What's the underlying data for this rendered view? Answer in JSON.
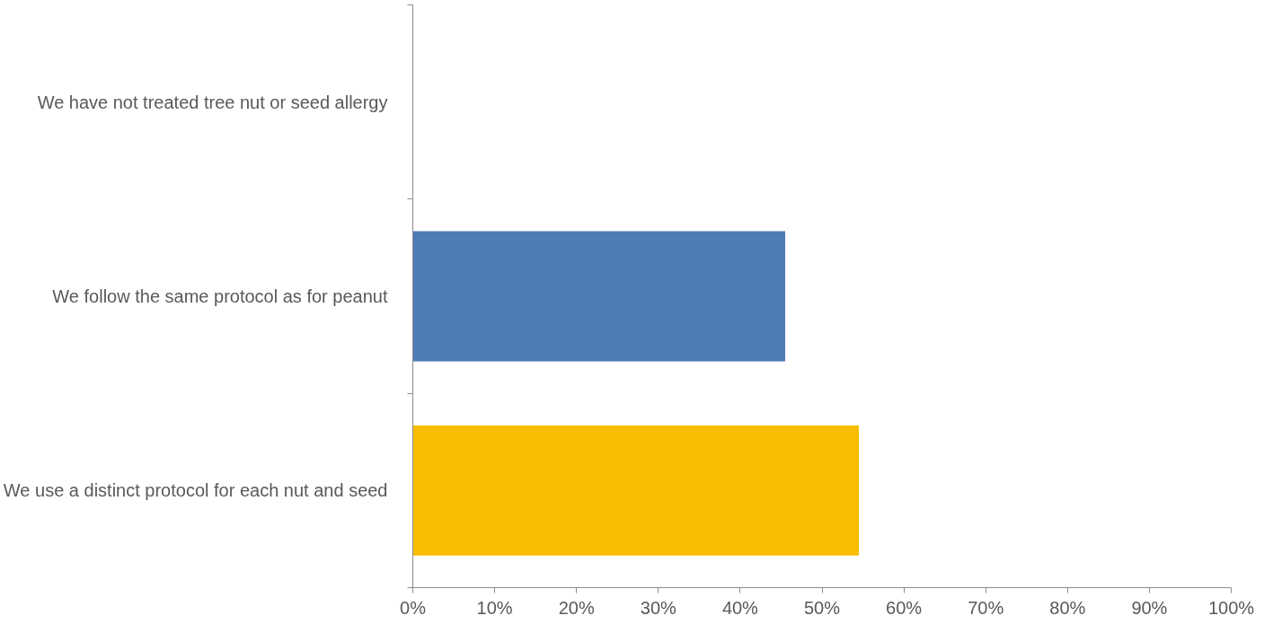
{
  "chart_data": {
    "type": "bar",
    "orientation": "horizontal",
    "categories": [
      "We have not treated tree nut or seed allergy",
      "We follow the same protocol as for peanut",
      "We use a distinct protocol for each nut and seed"
    ],
    "values": [
      0,
      45.5,
      54.5
    ],
    "colors": [
      "#a5a5a5",
      "#4e7ab5",
      "#f8bd00"
    ],
    "xlim": [
      0,
      100
    ],
    "xticks": [
      {
        "value": 0,
        "label": "0%"
      },
      {
        "value": 10,
        "label": "10%"
      },
      {
        "value": 20,
        "label": "20%"
      },
      {
        "value": 30,
        "label": "30%"
      },
      {
        "value": 40,
        "label": "40%"
      },
      {
        "value": 50,
        "label": "50%"
      },
      {
        "value": 60,
        "label": "60%"
      },
      {
        "value": 70,
        "label": "70%"
      },
      {
        "value": 80,
        "label": "80%"
      },
      {
        "value": 90,
        "label": "90%"
      },
      {
        "value": 100,
        "label": "100%"
      }
    ],
    "grid": false
  }
}
